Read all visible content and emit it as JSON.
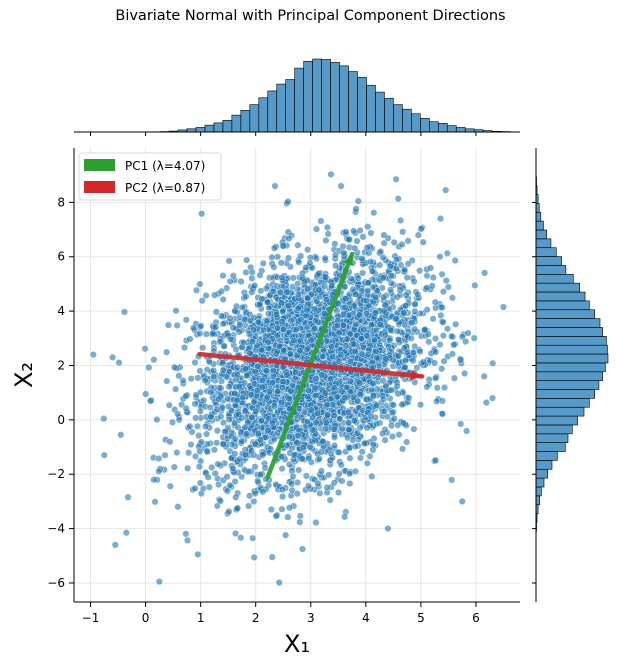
{
  "chart_data": {
    "type": "scatter",
    "title": "Bivariate Normal with Principal Component Directions",
    "xlabel": "X₁",
    "ylabel": "X₂",
    "xlim": [
      -1.3,
      6.8
    ],
    "ylim": [
      -6.7,
      10.0
    ],
    "xticks": [
      -1,
      0,
      1,
      2,
      3,
      4,
      5,
      6
    ],
    "yticks": [
      -6,
      -4,
      -2,
      0,
      2,
      4,
      6,
      8
    ],
    "grid": true,
    "legend_position": "top-left",
    "scatter": {
      "color": "#1f77b4",
      "mean": [
        3.0,
        2.0
      ],
      "approx_std": [
        1.0,
        2.0
      ],
      "visible_outliers": [
        {
          "x": -0.95,
          "y": 2.4
        },
        {
          "x": -0.6,
          "y": 2.3
        },
        {
          "x": 0.25,
          "y": -5.95
        },
        {
          "x": -0.75,
          "y": -1.3
        },
        {
          "x": -0.55,
          "y": -4.6
        },
        {
          "x": -0.35,
          "y": -4.15
        },
        {
          "x": 0.95,
          "y": -4.95
        },
        {
          "x": 2.3,
          "y": -5.05
        },
        {
          "x": 2.85,
          "y": -4.75
        },
        {
          "x": 3.55,
          "y": 8.6
        },
        {
          "x": 4.55,
          "y": 8.85
        },
        {
          "x": 5.45,
          "y": 8.45
        },
        {
          "x": 2.35,
          "y": 8.6
        },
        {
          "x": 6.5,
          "y": 4.15
        },
        {
          "x": 6.15,
          "y": 1.6
        },
        {
          "x": 6.3,
          "y": 0.8
        },
        {
          "x": 5.75,
          "y": -3.0
        },
        {
          "x": -0.45,
          "y": -0.55
        },
        {
          "x": 0.15,
          "y": -2.2
        },
        {
          "x": 4.4,
          "y": -4.0
        }
      ]
    },
    "series": [
      {
        "name": "PC1 (λ=4.07)",
        "color": "#2ca02c",
        "x": [
          2.22,
          3.75
        ],
        "y": [
          -2.1,
          6.1
        ]
      },
      {
        "name": "PC2 (λ=0.87)",
        "color": "#d62728",
        "x": [
          0.98,
          5.02
        ],
        "y": [
          2.42,
          1.6
        ]
      }
    ],
    "marginal_x": {
      "bin_start": 0.1,
      "bin_width": 0.163,
      "counts": [
        1,
        2,
        4,
        9,
        14,
        20,
        30,
        40,
        51,
        74,
        95,
        120,
        150,
        180,
        210,
        230,
        280,
        310,
        320,
        318,
        305,
        290,
        265,
        240,
        205,
        175,
        148,
        120,
        100,
        80,
        60,
        45,
        38,
        28,
        20,
        14,
        10,
        6,
        3,
        2
      ]
    },
    "marginal_y": {
      "bin_start": -4.1,
      "bin_width": 0.326,
      "counts": [
        1,
        2,
        4,
        7,
        10,
        15,
        22,
        30,
        40,
        55,
        60,
        68,
        78,
        90,
        100,
        110,
        118,
        125,
        130,
        135,
        134,
        132,
        125,
        120,
        110,
        100,
        92,
        82,
        70,
        56,
        48,
        38,
        28,
        20,
        14,
        9,
        6,
        4,
        2,
        1
      ]
    }
  }
}
